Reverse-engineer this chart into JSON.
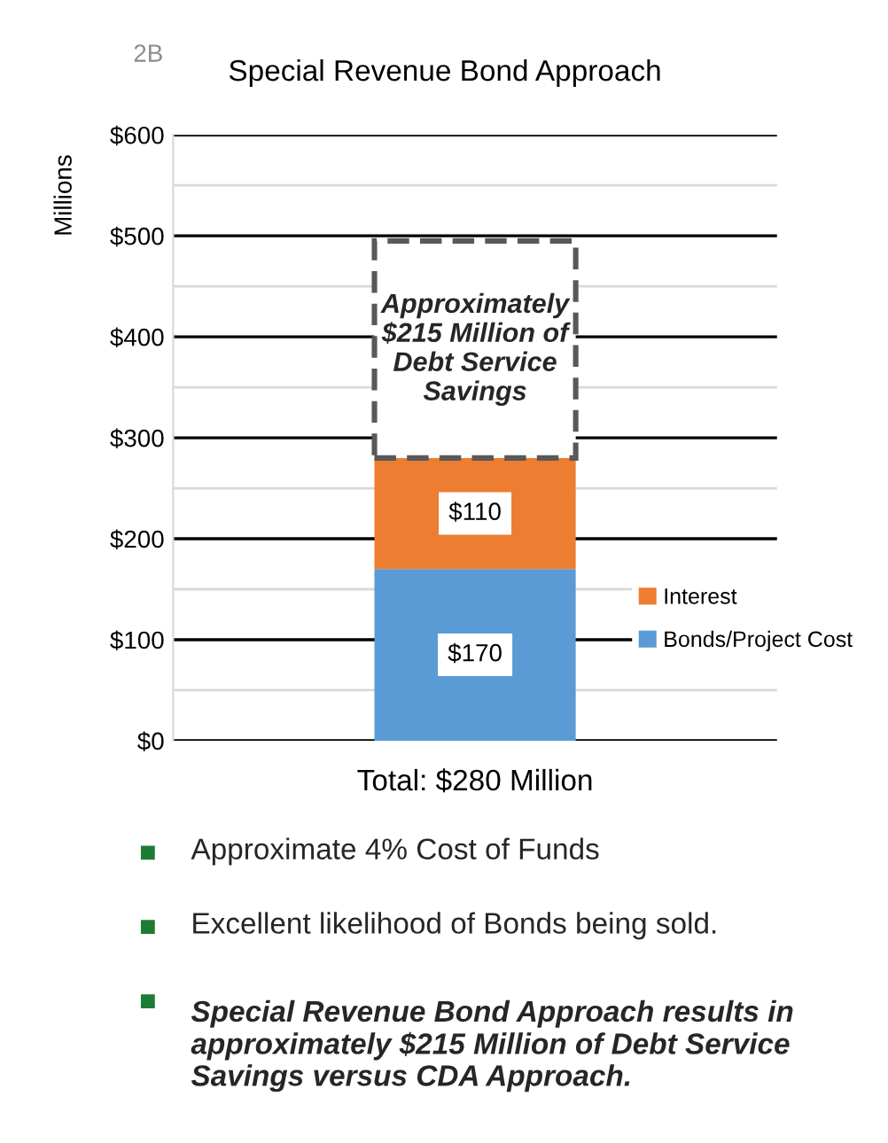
{
  "chart_data": {
    "type": "bar",
    "title": "Special Revenue Bond Approach",
    "subtitle": "2B",
    "xlabel": "Total: $280 Million",
    "ylabel": "Millions",
    "categories": [
      null
    ],
    "stacked": true,
    "series": [
      {
        "name": "Bonds/Project Cost",
        "color": "#5b9bd5",
        "values": [
          170
        ],
        "value_labels": [
          "$170"
        ]
      },
      {
        "name": "Interest",
        "color": "#ed7d31",
        "values": [
          110
        ],
        "value_labels": [
          "$110"
        ]
      },
      {
        "color": "#ffffff",
        "values": [
          215
        ],
        "line_style": "dashed",
        "value_labels": [
          "Approximately\n$215 Million of\nDebt Service\nSavings"
        ]
      }
    ],
    "ylim": [
      0,
      600
    ],
    "yticks": [
      {
        "value": 0,
        "label": "$0"
      },
      {
        "value": 50,
        "label": null
      },
      {
        "value": 100,
        "label": "$100"
      },
      {
        "value": 150,
        "label": null
      },
      {
        "value": 200,
        "label": "$200"
      },
      {
        "value": 250,
        "label": null
      },
      {
        "value": 300,
        "label": "$300"
      },
      {
        "value": 350,
        "label": null
      },
      {
        "value": 400,
        "label": "$400"
      },
      {
        "value": 450,
        "label": null
      },
      {
        "value": 500,
        "label": "$500"
      },
      {
        "value": 550,
        "label": null
      },
      {
        "value": 600,
        "label": "$600"
      }
    ],
    "grid": "y",
    "legend": "right",
    "annotations": [
      "Approximate 4% Cost of Funds",
      "Excellent likelihood of Bonds being sold.",
      "Special Revenue Bond Approach results in approximately $215 Million of Debt Service Savings versus CDA Approach."
    ]
  }
}
